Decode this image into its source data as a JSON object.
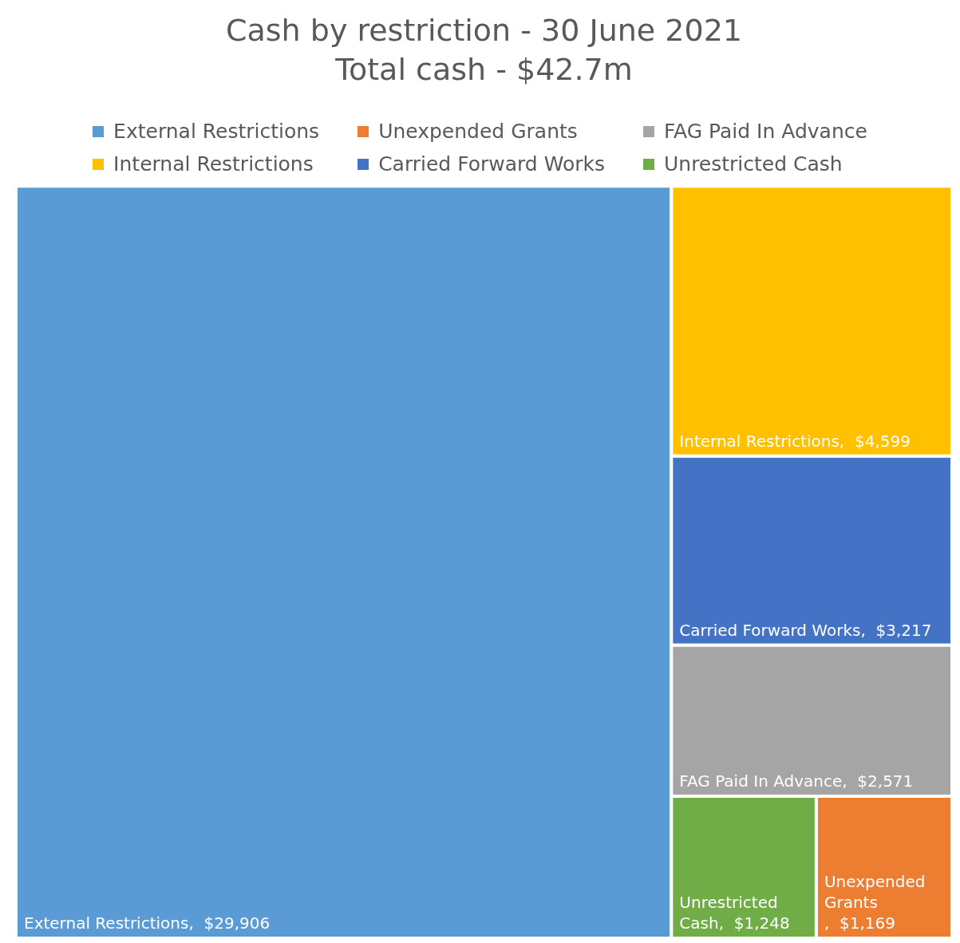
{
  "chart_data": {
    "type": "other",
    "title": "Cash by restriction - 30 June 2021",
    "subtitle": "Total cash - $42.7m",
    "categories": [
      "External Restrictions",
      "Unexpended Grants",
      "FAG Paid In Advance",
      "Internal Restrictions",
      "Carried Forward Works",
      "Unrestricted Cash"
    ],
    "values": [
      29906,
      1169,
      2571,
      4599,
      3217,
      1248
    ],
    "value_labels": [
      ",  $29,906",
      ",  $1,169",
      ",  $2,571",
      ",  $4,599",
      ",  $3,217",
      ",  $1,248"
    ],
    "colors": [
      "#5b9bd5",
      "#ed7d31",
      "#a5a5a5",
      "#ffc000",
      "#4472c4",
      "#70ad47"
    ]
  }
}
